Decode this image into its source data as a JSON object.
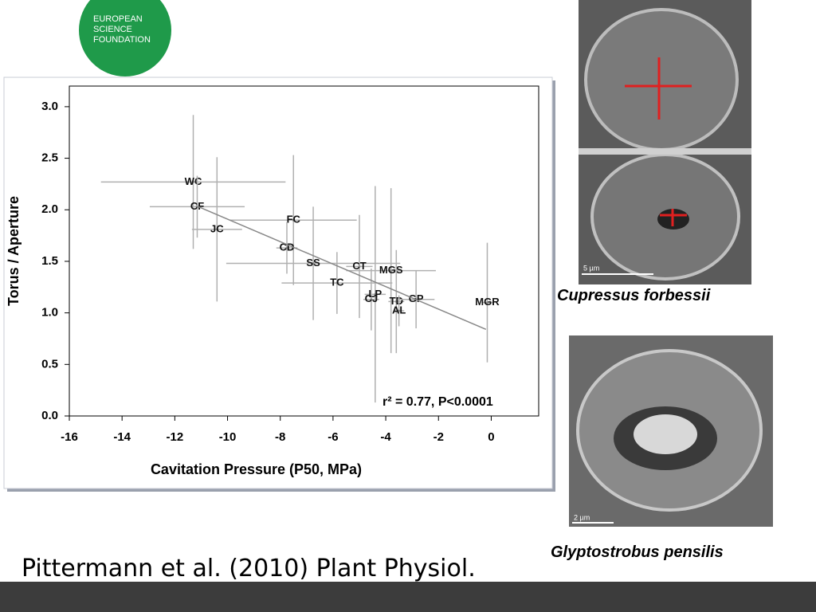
{
  "logo": {
    "lines": [
      "EUROPEAN",
      "SCIENCE",
      "FOUNDATION"
    ]
  },
  "chart_data": {
    "type": "scatter",
    "x_label": "Cavitation Pressure (P50, MPa)",
    "y_label": "Torus / Aperture",
    "annotation": "r² = 0.77, P<0.0001",
    "categories": [
      "WC",
      "CF",
      "JC",
      "FC",
      "CD",
      "SS",
      "CT",
      "MGS",
      "TC",
      "LP",
      "CJ",
      "TD",
      "GP",
      "AL",
      "MGR"
    ],
    "x": [
      -11.3,
      -11.15,
      -10.4,
      -7.5,
      -7.75,
      -6.75,
      -5.0,
      -3.8,
      -5.85,
      -4.4,
      -4.55,
      -3.6,
      -2.85,
      -3.5,
      -0.15
    ],
    "values": [
      2.27,
      2.03,
      1.81,
      1.9,
      1.63,
      1.48,
      1.45,
      1.41,
      1.29,
      1.18,
      1.13,
      1.11,
      1.13,
      1.02,
      1.1
    ],
    "xerr": [
      3.5,
      1.8,
      0.95,
      2.4,
      0.4,
      3.3,
      0.5,
      1.7,
      2.1,
      0.4,
      0.3,
      0.3,
      0.7,
      0.2,
      0.2
    ],
    "yerr": [
      0.65,
      0.3,
      0.7,
      0.63,
      0.25,
      0.55,
      0.5,
      0.8,
      0.3,
      1.05,
      0.3,
      0.5,
      0.28,
      0.15,
      0.58
    ],
    "fit_line": {
      "x": [
        -11.2,
        -0.2
      ],
      "y": [
        2.04,
        0.84
      ]
    },
    "color": "#b0b0b0",
    "xlim": [
      -16,
      1.8
    ],
    "ylim": [
      0,
      3.2
    ],
    "xticks": [
      -16,
      -14,
      -12,
      -10,
      -8,
      -6,
      -4,
      -2,
      0
    ],
    "yticks": [
      {
        "value": 0,
        "label": "0.0"
      },
      {
        "value": 0.5,
        "label": "0.5"
      },
      {
        "value": 1,
        "label": "1.0"
      },
      {
        "value": 1.5,
        "label": "1.5"
      },
      {
        "value": 2,
        "label": "2.0"
      },
      {
        "value": 2.5,
        "label": "2.5"
      },
      {
        "value": 3,
        "label": "3.0"
      }
    ]
  },
  "images": [
    {
      "caption": "Cupressus forbessii",
      "scale": "5 µm"
    },
    {
      "caption": "Glyptostrobus pensilis",
      "scale": "2 µm"
    }
  ],
  "citation": "Pittermann et al. (2010) Plant Physiol."
}
